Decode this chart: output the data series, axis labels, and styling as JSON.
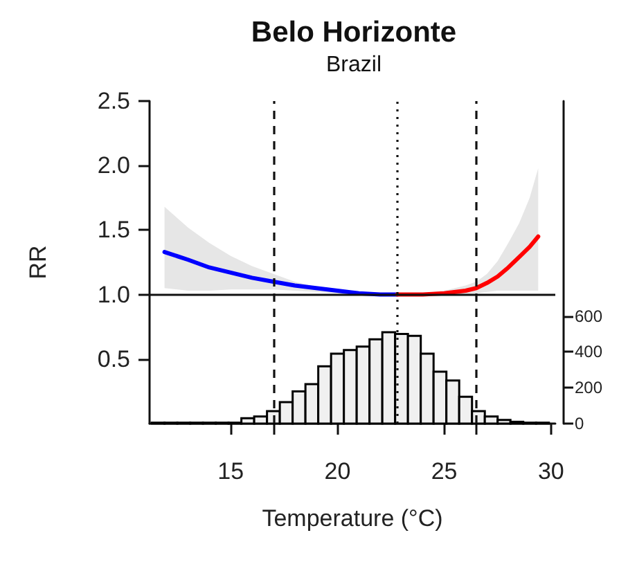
{
  "chart_data": {
    "type": "line",
    "title": "Belo Horizonte",
    "subtitle": "Brazil",
    "xlabel": "Temperature (°C)",
    "ylabel": "RR",
    "xlim": [
      11.2,
      30.2
    ],
    "xticks": [
      15,
      {
        "value": 17.05,
        "label": null
      },
      20,
      25,
      {
        "value": 26.5,
        "label": null
      },
      30
    ],
    "ylim": [
      0,
      2.5
    ],
    "yticks": [
      {
        "value": 0.5,
        "label": "0.5"
      },
      {
        "value": 1,
        "label": "1.0"
      },
      {
        "value": 1.5,
        "label": "1.5"
      },
      {
        "value": 2,
        "label": "2.0"
      },
      {
        "value": 2.5,
        "label": "2.5"
      }
    ],
    "y2lim": [
      0,
      1800
    ],
    "y2ticks": [
      0,
      200,
      400,
      600
    ],
    "series": [
      {
        "color": "#0000ff",
        "x": [
          11.9,
          13,
          14,
          15,
          16,
          17,
          18,
          19,
          20,
          21,
          22,
          22.8
        ],
        "values": [
          1.33,
          1.27,
          1.21,
          1.17,
          1.13,
          1.1,
          1.07,
          1.05,
          1.03,
          1.01,
          1.0,
          1.0
        ],
        "upper": [
          1.68,
          1.52,
          1.4,
          1.3,
          1.22,
          1.16,
          1.1,
          1.06,
          1.03,
          1.01,
          1.0,
          1.0
        ],
        "lower": [
          1.05,
          1.03,
          1.03,
          1.04,
          1.04,
          1.04,
          1.03,
          1.02,
          1.01,
          1.0,
          1.0,
          1.0
        ]
      },
      {
        "color": "#ff0000",
        "x": [
          22.8,
          24,
          25,
          26,
          26.5,
          27,
          27.5,
          28,
          28.5,
          29,
          29.4
        ],
        "values": [
          1.0,
          1.0,
          1.01,
          1.03,
          1.05,
          1.09,
          1.14,
          1.21,
          1.29,
          1.37,
          1.45
        ],
        "upper": [
          1.0,
          1.01,
          1.03,
          1.07,
          1.1,
          1.16,
          1.26,
          1.4,
          1.55,
          1.75,
          1.98
        ],
        "lower": [
          1.0,
          0.99,
          0.99,
          1.0,
          1.01,
          1.02,
          1.03,
          1.03,
          1.03,
          1.03,
          1.03
        ]
      },
      {
        "type": "histogram",
        "axis": "y2",
        "color": "#f0f0f0",
        "bins": [
          11.3,
          11.9,
          12.5,
          13.1,
          13.7,
          14.3,
          14.9,
          15.5,
          16.1,
          16.7,
          17.3,
          17.9,
          18.5,
          19.1,
          19.7,
          20.3,
          20.9,
          21.5,
          22.1,
          22.7,
          23.3,
          23.9,
          24.5,
          25.1,
          25.7,
          26.3,
          26.9,
          27.5,
          28.1,
          28.7,
          29.3,
          29.9
        ],
        "values": [
          5,
          5,
          5,
          5,
          5,
          5,
          5,
          30,
          40,
          70,
          120,
          180,
          220,
          320,
          390,
          410,
          430,
          470,
          510,
          500,
          490,
          390,
          290,
          240,
          150,
          70,
          40,
          20,
          10,
          5,
          5
        ]
      }
    ],
    "ref_lines": [
      {
        "axis": "y",
        "value": 1,
        "line_style": "solid"
      },
      {
        "axis": "x",
        "value": 17.05,
        "line_style": "dashed"
      },
      {
        "axis": "x",
        "value": 22.8,
        "line_style": "dotted"
      },
      {
        "axis": "x",
        "value": 26.5,
        "line_style": "dashed"
      }
    ]
  }
}
